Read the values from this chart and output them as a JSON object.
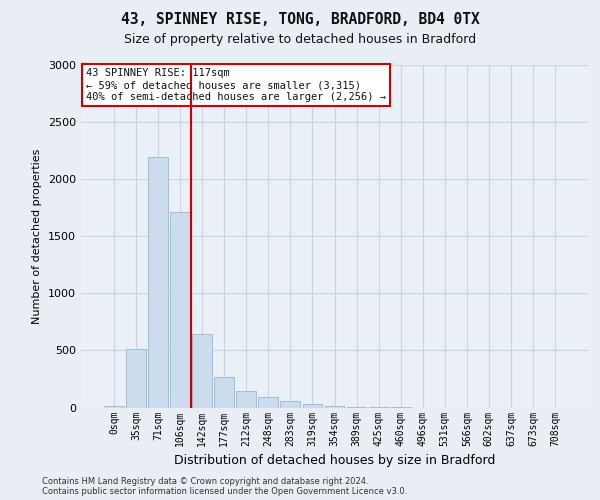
{
  "title1": "43, SPINNEY RISE, TONG, BRADFORD, BD4 0TX",
  "title2": "Size of property relative to detached houses in Bradford",
  "xlabel": "Distribution of detached houses by size in Bradford",
  "ylabel": "Number of detached properties",
  "bar_labels": [
    "0sqm",
    "35sqm",
    "71sqm",
    "106sqm",
    "142sqm",
    "177sqm",
    "212sqm",
    "248sqm",
    "283sqm",
    "319sqm",
    "354sqm",
    "389sqm",
    "425sqm",
    "460sqm",
    "496sqm",
    "531sqm",
    "566sqm",
    "602sqm",
    "637sqm",
    "673sqm",
    "708sqm"
  ],
  "bar_values": [
    15,
    510,
    2190,
    1710,
    640,
    265,
    145,
    90,
    55,
    35,
    15,
    8,
    4,
    2,
    0,
    0,
    0,
    0,
    0,
    0,
    0
  ],
  "bar_color": "#ccdcec",
  "bar_edge_color": "#9ab8d0",
  "ylim": [
    0,
    3000
  ],
  "yticks": [
    0,
    500,
    1000,
    1500,
    2000,
    2500,
    3000
  ],
  "vline_color": "#cc0000",
  "vline_x": 3.5,
  "annotation_line1": "43 SPINNEY RISE: 117sqm",
  "annotation_line2": "← 59% of detached houses are smaller (3,315)",
  "annotation_line3": "40% of semi-detached houses are larger (2,256) →",
  "annotation_box_edge_color": "#cc0000",
  "footer_text": "Contains HM Land Registry data © Crown copyright and database right 2024.\nContains public sector information licensed under the Open Government Licence v3.0.",
  "fig_bg_color": "#e8eef4",
  "plot_bg_color": "#eaf0f6",
  "grid_color": "#c8d4e0",
  "title1_fontsize": 10.5,
  "title2_fontsize": 9,
  "ylabel_fontsize": 8,
  "xlabel_fontsize": 9,
  "tick_fontsize": 7,
  "footer_fontsize": 6
}
